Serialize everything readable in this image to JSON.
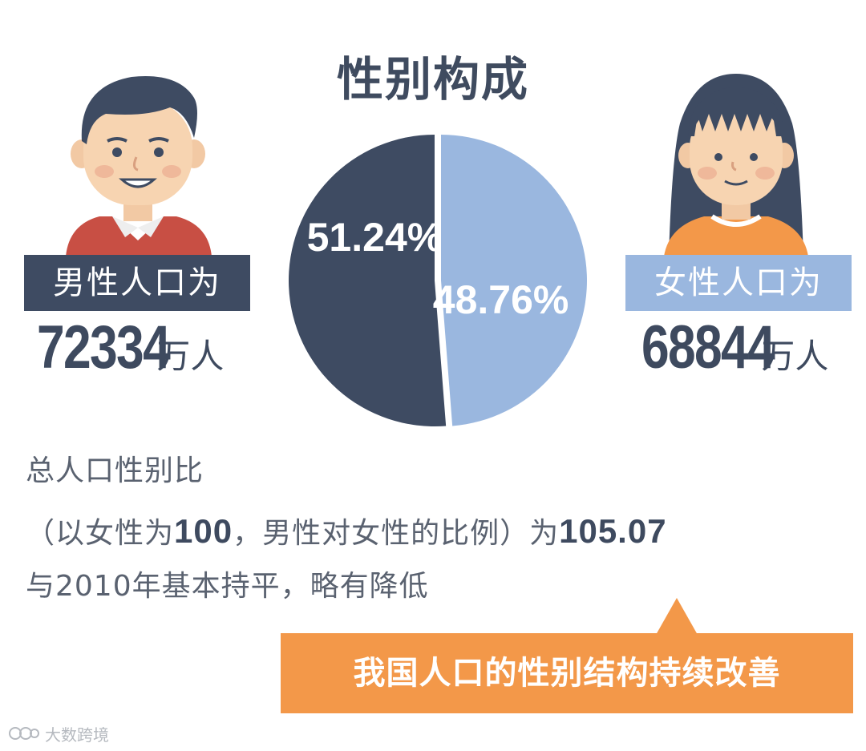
{
  "title": "性别构成",
  "male": {
    "label": "男性人口为",
    "count": "72334",
    "unit": "万人"
  },
  "female": {
    "label": "女性人口为",
    "count": "68844",
    "unit": "万人"
  },
  "chart_data": {
    "type": "pie",
    "title": "性别构成",
    "slices": [
      {
        "name": "男性",
        "value": 51.24,
        "label": "51.24%",
        "color": "#3e4b62"
      },
      {
        "name": "女性",
        "value": 48.76,
        "label": "48.76%",
        "color": "#9ab7df"
      }
    ]
  },
  "text": {
    "line1": "总人口性别比",
    "line2_a": "（以女性为",
    "line2_num1": "100",
    "line2_b": "，男性对女性的比例）为",
    "line2_num2": "105.07",
    "line3": "与2010年基本持平，略有降低"
  },
  "callout": "我国人口的性别结构持续改善",
  "watermark": "大数跨境"
}
